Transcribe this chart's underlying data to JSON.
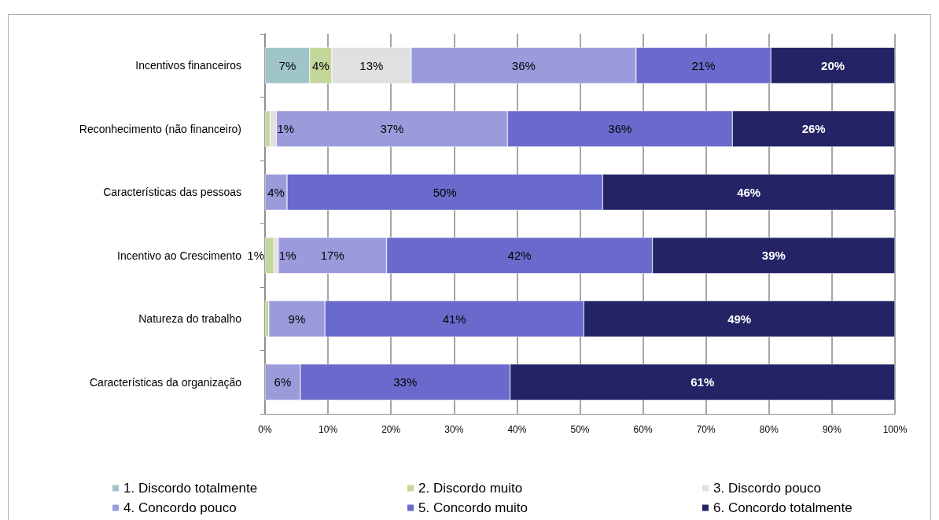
{
  "chart_data": {
    "type": "bar",
    "orientation": "horizontal",
    "stacked": true,
    "categories": [
      "Incentivos financeiros",
      "Reconhecimento (não financeiro)",
      "Características das pessoas",
      "Incentivo ao Crescimento",
      "Natureza do trabalho",
      "Características da organização"
    ],
    "series": [
      {
        "name": "1. Discordo totalmente",
        "color": "#9fc5c8",
        "values": [
          7.1,
          null,
          null,
          null,
          null,
          null
        ],
        "value_labels": [
          "7%",
          null,
          null,
          null,
          null,
          null
        ]
      },
      {
        "name": "2. Discordo muito",
        "color": "#c4d79b",
        "values": [
          3.5,
          0.8,
          null,
          1.4,
          0.6,
          null
        ],
        "value_labels": [
          "4%",
          null,
          null,
          "1%",
          null,
          null
        ]
      },
      {
        "name": "3. Discordo pouco",
        "color": "#e0e0e0",
        "values": [
          12.6,
          1.0,
          null,
          0.7,
          null,
          null
        ],
        "value_labels": [
          "13%",
          "1%",
          null,
          "1%",
          null,
          null
        ]
      },
      {
        "name": "4. Concordo pouco",
        "color": "#9b9bdc",
        "values": [
          35.7,
          36.7,
          3.5,
          17.2,
          8.9,
          5.6
        ],
        "value_labels": [
          "36%",
          "37%",
          "4%",
          "17%",
          "9%",
          "6%"
        ]
      },
      {
        "name": "5. Concordo muito",
        "color": "#6a6acc",
        "values": [
          21.4,
          35.7,
          50.1,
          42.2,
          41.1,
          33.3
        ],
        "value_labels": [
          "21%",
          "36%",
          "50%",
          "42%",
          "41%",
          "33%"
        ]
      },
      {
        "name": "6. Concordo totalmente",
        "color": "#232365",
        "values": [
          19.7,
          25.8,
          46.4,
          38.5,
          49.4,
          61.1
        ],
        "value_labels": [
          "20%",
          "26%",
          "46%",
          "39%",
          "49%",
          "61%"
        ]
      }
    ],
    "xlim": [
      0,
      100
    ],
    "xticks": [
      {
        "value": 0,
        "label": "0%"
      },
      {
        "value": 10,
        "label": "10%"
      },
      {
        "value": 20,
        "label": "20%"
      },
      {
        "value": 30,
        "label": "30%"
      },
      {
        "value": 40,
        "label": "40%"
      },
      {
        "value": 50,
        "label": "50%"
      },
      {
        "value": 60,
        "label": "60%"
      },
      {
        "value": 70,
        "label": "70%"
      },
      {
        "value": 80,
        "label": "80%"
      },
      {
        "value": 90,
        "label": "90%"
      },
      {
        "value": 100,
        "label": "100%"
      }
    ],
    "grid": "x",
    "legend": "bottom"
  }
}
